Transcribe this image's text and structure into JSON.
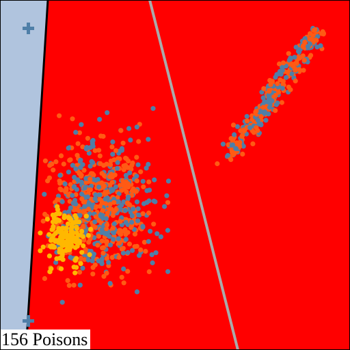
{
  "caption": "156 Poisons",
  "colors": {
    "region_negative": "#ff0000",
    "region_positive": "#b0c4de",
    "boundary_current": "#000000",
    "boundary_reference": "#aaaaaa",
    "points_negative": "#ff5a14",
    "points_positive": "#4f7fa8",
    "points_poison": "#ffb800"
  },
  "icons": [
    "plus-marker-icon"
  ]
}
